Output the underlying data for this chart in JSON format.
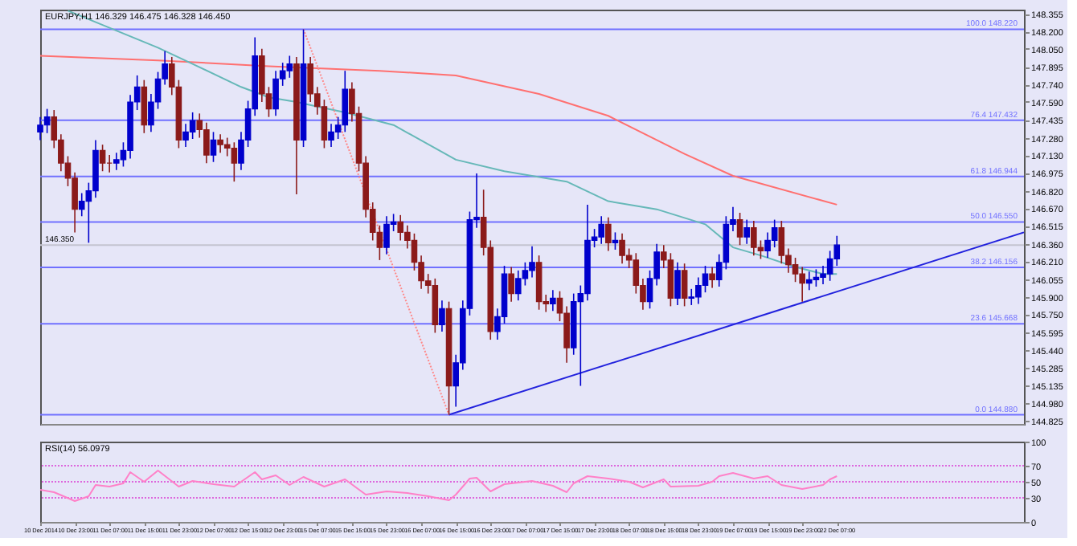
{
  "chart_data": [
    {
      "type": "candlestick",
      "title": "EURJPY,H1 146.329 146.475 146.328 146.450",
      "categories": [
        null,
        null,
        null,
        null,
        null,
        null,
        null,
        null,
        null,
        null,
        null,
        null,
        null,
        null,
        null,
        null,
        null,
        null,
        null,
        null,
        null,
        null,
        null,
        null,
        null,
        null,
        null,
        null,
        null,
        null,
        null,
        null,
        null,
        null,
        null,
        null,
        null,
        null,
        null,
        null,
        null,
        null,
        null,
        null,
        null,
        null,
        null,
        null,
        null,
        null,
        null,
        null,
        null,
        null,
        null,
        null,
        null,
        null,
        null,
        null,
        null,
        null,
        null,
        null,
        null,
        null,
        null,
        null,
        null,
        null,
        null,
        null,
        null,
        null,
        null,
        null,
        null,
        null,
        null,
        null,
        null,
        null,
        null,
        null,
        null,
        null,
        null,
        null,
        null,
        null,
        null,
        null,
        null,
        null,
        null,
        null,
        null,
        null,
        null,
        null,
        null,
        null,
        null,
        null,
        null,
        null,
        null,
        null,
        null,
        null,
        null,
        null,
        null,
        null,
        null,
        null,
        null,
        null,
        null,
        null,
        null,
        null,
        null,
        null,
        null,
        null,
        null,
        null,
        null,
        null,
        null,
        null,
        null,
        null,
        null,
        null,
        null,
        null,
        null,
        null,
        null,
        null,
        null
      ],
      "ohlc": [
        [
          147.33,
          147.46,
          147.26,
          147.39
        ],
        [
          147.39,
          147.53,
          147.32,
          147.46
        ],
        [
          147.46,
          147.52,
          147.19,
          147.26
        ],
        [
          147.26,
          147.31,
          146.99,
          147.06
        ],
        [
          147.06,
          147.12,
          146.86,
          146.93
        ],
        [
          146.93,
          146.98,
          146.46,
          146.66
        ],
        [
          146.66,
          146.8,
          146.6,
          146.73
        ],
        [
          146.73,
          146.89,
          146.37,
          146.82
        ],
        [
          146.82,
          147.26,
          146.76,
          147.17
        ],
        [
          147.17,
          147.22,
          146.99,
          147.06
        ],
        [
          147.06,
          147.13,
          146.98,
          147.06
        ],
        [
          147.06,
          147.15,
          147.0,
          147.09
        ],
        [
          147.09,
          147.24,
          147.03,
          147.17
        ],
        [
          147.17,
          147.65,
          147.1,
          147.59
        ],
        [
          147.59,
          147.82,
          147.52,
          147.72
        ],
        [
          147.72,
          147.78,
          147.32,
          147.39
        ],
        [
          147.39,
          147.66,
          147.33,
          147.59
        ],
        [
          147.59,
          147.85,
          147.53,
          147.79
        ],
        [
          147.79,
          148.03,
          147.74,
          147.92
        ],
        [
          147.92,
          147.98,
          147.65,
          147.72
        ],
        [
          147.72,
          147.78,
          147.19,
          147.26
        ],
        [
          147.26,
          147.4,
          147.2,
          147.33
        ],
        [
          147.33,
          147.5,
          147.27,
          147.43
        ],
        [
          147.43,
          147.49,
          147.28,
          147.35
        ],
        [
          147.35,
          147.41,
          147.06,
          147.13
        ],
        [
          147.13,
          147.33,
          147.07,
          147.26
        ],
        [
          147.26,
          147.31,
          147.15,
          147.22
        ],
        [
          147.22,
          147.28,
          147.12,
          147.19
        ],
        [
          147.19,
          147.24,
          146.9,
          147.06
        ],
        [
          147.06,
          147.33,
          147.0,
          147.26
        ],
        [
          147.26,
          147.6,
          147.2,
          147.53
        ],
        [
          147.53,
          148.15,
          147.47,
          147.99
        ],
        [
          147.99,
          148.05,
          147.59,
          147.66
        ],
        [
          147.66,
          147.72,
          147.46,
          147.53
        ],
        [
          147.53,
          147.86,
          147.47,
          147.79
        ],
        [
          147.79,
          147.93,
          147.73,
          147.86
        ],
        [
          147.86,
          147.99,
          147.8,
          147.92
        ],
        [
          147.92,
          147.98,
          146.79,
          147.26
        ],
        [
          147.26,
          148.22,
          147.2,
          147.92
        ],
        [
          147.92,
          147.98,
          147.59,
          147.66
        ],
        [
          147.66,
          147.72,
          147.48,
          147.55
        ],
        [
          147.55,
          147.61,
          147.19,
          147.26
        ],
        [
          147.26,
          147.4,
          147.2,
          147.33
        ],
        [
          147.33,
          147.46,
          147.27,
          147.39
        ],
        [
          147.39,
          147.86,
          147.33,
          147.7
        ],
        [
          147.7,
          147.76,
          147.42,
          147.49
        ],
        [
          147.49,
          147.55,
          146.99,
          147.06
        ],
        [
          147.06,
          147.12,
          146.59,
          146.66
        ],
        [
          146.66,
          146.72,
          146.39,
          146.46
        ],
        [
          146.46,
          146.52,
          146.22,
          146.33
        ],
        [
          146.33,
          146.6,
          146.27,
          146.53
        ],
        [
          146.53,
          146.62,
          146.47,
          146.55
        ],
        [
          146.55,
          146.61,
          146.39,
          146.46
        ],
        [
          146.46,
          146.52,
          146.32,
          146.39
        ],
        [
          146.39,
          146.45,
          146.13,
          146.2
        ],
        [
          146.2,
          146.26,
          145.97,
          146.04
        ],
        [
          146.04,
          146.1,
          145.93,
          146.0
        ],
        [
          146.0,
          146.06,
          145.59,
          145.66
        ],
        [
          145.66,
          145.87,
          145.6,
          145.8
        ],
        [
          145.8,
          145.86,
          144.88,
          145.13
        ],
        [
          145.13,
          145.4,
          144.95,
          145.33
        ],
        [
          145.33,
          145.87,
          145.27,
          145.8
        ],
        [
          145.8,
          146.64,
          145.74,
          146.57
        ],
        [
          146.57,
          146.97,
          146.5,
          146.59
        ],
        [
          146.59,
          146.83,
          146.26,
          146.33
        ],
        [
          146.33,
          146.39,
          145.53,
          145.6
        ],
        [
          145.6,
          145.8,
          145.53,
          145.73
        ],
        [
          145.73,
          146.17,
          145.67,
          146.1
        ],
        [
          146.1,
          146.16,
          145.86,
          145.93
        ],
        [
          145.93,
          146.13,
          145.87,
          146.06
        ],
        [
          146.06,
          146.2,
          146.0,
          146.13
        ],
        [
          146.13,
          146.34,
          146.07,
          146.2
        ],
        [
          146.2,
          146.26,
          145.79,
          145.86
        ],
        [
          145.86,
          145.92,
          145.77,
          145.84
        ],
        [
          145.84,
          145.96,
          145.78,
          145.89
        ],
        [
          145.89,
          145.95,
          145.69,
          145.76
        ],
        [
          145.76,
          145.82,
          145.33,
          145.46
        ],
        [
          145.46,
          145.93,
          145.4,
          145.86
        ],
        [
          145.86,
          146.0,
          145.13,
          145.93
        ],
        [
          145.93,
          146.7,
          145.87,
          146.39
        ],
        [
          146.39,
          146.49,
          146.33,
          146.42
        ],
        [
          146.42,
          146.6,
          146.36,
          146.53
        ],
        [
          146.53,
          146.59,
          146.3,
          146.37
        ],
        [
          146.37,
          146.46,
          146.31,
          146.39
        ],
        [
          146.39,
          146.45,
          146.19,
          146.26
        ],
        [
          146.26,
          146.32,
          146.15,
          146.22
        ],
        [
          146.22,
          146.28,
          145.93,
          146.0
        ],
        [
          146.0,
          146.06,
          145.79,
          145.86
        ],
        [
          145.86,
          146.13,
          145.8,
          146.06
        ],
        [
          146.06,
          146.36,
          146.0,
          146.29
        ],
        [
          146.29,
          146.35,
          146.15,
          146.22
        ],
        [
          146.22,
          146.28,
          145.82,
          145.89
        ],
        [
          145.89,
          146.2,
          145.83,
          146.13
        ],
        [
          146.13,
          146.19,
          145.82,
          145.89
        ],
        [
          145.89,
          145.97,
          145.83,
          145.9
        ],
        [
          145.9,
          146.07,
          145.84,
          146.0
        ],
        [
          146.0,
          146.17,
          145.94,
          146.1
        ],
        [
          146.1,
          146.16,
          145.98,
          146.05
        ],
        [
          146.05,
          146.27,
          145.99,
          146.2
        ],
        [
          146.2,
          146.6,
          146.14,
          146.53
        ],
        [
          146.53,
          146.68,
          146.47,
          146.57
        ],
        [
          146.57,
          146.63,
          146.35,
          146.42
        ],
        [
          146.42,
          146.57,
          146.36,
          146.5
        ],
        [
          146.5,
          146.56,
          146.26,
          146.33
        ],
        [
          146.33,
          146.39,
          146.23,
          146.3
        ],
        [
          146.3,
          146.46,
          146.24,
          146.39
        ],
        [
          146.39,
          146.57,
          146.33,
          146.5
        ],
        [
          146.5,
          146.56,
          146.19,
          146.26
        ],
        [
          146.26,
          146.32,
          146.11,
          146.18
        ],
        [
          146.18,
          146.24,
          146.03,
          146.1
        ],
        [
          146.1,
          146.16,
          145.86,
          146.02
        ],
        [
          146.02,
          146.12,
          145.96,
          146.05
        ],
        [
          146.05,
          146.14,
          145.99,
          146.07
        ],
        [
          146.07,
          146.17,
          146.01,
          146.1
        ],
        [
          146.1,
          146.3,
          146.04,
          146.23
        ],
        [
          146.23,
          146.43,
          146.17,
          146.35
        ],
        null,
        null,
        null,
        null,
        null,
        null,
        null,
        null,
        null,
        null,
        null,
        null,
        null,
        null,
        null,
        null,
        null,
        null,
        null,
        null,
        null,
        null,
        null,
        null,
        null,
        null,
        null
      ],
      "colors": [
        "#0000cc",
        "#0000cc",
        "#8b1a1a",
        "#8b1a1a",
        "#8b1a1a",
        "#8b1a1a",
        "#0000cc",
        "#0000cc",
        "#0000cc",
        "#8b1a1a",
        "#8b1a1a",
        "#0000cc",
        "#0000cc",
        "#0000cc",
        "#0000cc",
        "#8b1a1a",
        "#0000cc",
        "#0000cc",
        "#0000cc",
        "#8b1a1a",
        "#8b1a1a",
        "#0000cc",
        "#0000cc",
        "#8b1a1a",
        "#8b1a1a",
        "#0000cc",
        "#8b1a1a",
        "#8b1a1a",
        "#8b1a1a",
        "#0000cc",
        "#0000cc",
        "#0000cc",
        "#8b1a1a",
        "#8b1a1a",
        "#0000cc",
        "#0000cc",
        "#0000cc",
        "#8b1a1a",
        "#0000cc",
        "#8b1a1a",
        "#8b1a1a",
        "#8b1a1a",
        "#0000cc",
        "#0000cc",
        "#0000cc",
        "#8b1a1a",
        "#8b1a1a",
        "#8b1a1a",
        "#8b1a1a",
        "#8b1a1a",
        "#0000cc",
        "#0000cc",
        "#8b1a1a",
        "#8b1a1a",
        "#8b1a1a",
        "#8b1a1a",
        "#8b1a1a",
        "#8b1a1a",
        "#0000cc",
        "#8b1a1a",
        "#0000cc",
        "#0000cc",
        "#0000cc",
        "#0000cc",
        "#8b1a1a",
        "#8b1a1a",
        "#0000cc",
        "#0000cc",
        "#8b1a1a",
        "#0000cc",
        "#0000cc",
        "#0000cc",
        "#8b1a1a",
        "#8b1a1a",
        "#0000cc",
        "#8b1a1a",
        "#8b1a1a",
        "#0000cc",
        "#0000cc",
        "#0000cc",
        "#0000cc",
        "#0000cc",
        "#8b1a1a",
        "#0000cc",
        "#8b1a1a",
        "#8b1a1a",
        "#8b1a1a",
        "#8b1a1a",
        "#0000cc",
        "#0000cc",
        "#8b1a1a",
        "#8b1a1a",
        "#0000cc",
        "#8b1a1a",
        "#0000cc",
        "#0000cc",
        "#0000cc",
        "#8b1a1a",
        "#0000cc",
        "#0000cc",
        "#0000cc",
        "#8b1a1a",
        "#0000cc",
        "#8b1a1a",
        "#8b1a1a",
        "#0000cc",
        "#0000cc",
        "#8b1a1a",
        "#8b1a1a",
        "#8b1a1a",
        "#8b1a1a",
        "#0000cc",
        "#0000cc",
        "#0000cc",
        "#0000cc",
        "#0000cc",
        null,
        null,
        null,
        null,
        null,
        null,
        null,
        null,
        null,
        null,
        null,
        null,
        null,
        null,
        null,
        null,
        null,
        null,
        null,
        null,
        null,
        null,
        null,
        null,
        null,
        null,
        null
      ],
      "series": [
        {
          "type": "line",
          "color": "#ff7070",
          "values": [
            147.99,
            null,
            null,
            null,
            null,
            null,
            null,
            null,
            null,
            null,
            null,
            null,
            null,
            null,
            null,
            null,
            null,
            147.95,
            null,
            null,
            null,
            null,
            null,
            null,
            null,
            null,
            null,
            null,
            null,
            null,
            null,
            null,
            null,
            147.9,
            null,
            null,
            null,
            null,
            null,
            null,
            null,
            null,
            null,
            null,
            null,
            null,
            null,
            null,
            null,
            147.86,
            null,
            null,
            null,
            null,
            null,
            null,
            null,
            null,
            null,
            null,
            147.82,
            null,
            null,
            null,
            null,
            null,
            null,
            null,
            null,
            null,
            null,
            null,
            147.66,
            null,
            null,
            null,
            null,
            null,
            null,
            null,
            null,
            null,
            147.47,
            null,
            null,
            null,
            null,
            null,
            null,
            null,
            null,
            null,
            null,
            147.14,
            null,
            null,
            null,
            null,
            null,
            null,
            146.95,
            null,
            null,
            null,
            null,
            null,
            null,
            null,
            null,
            null,
            null,
            null,
            null,
            null,
            null,
            146.7,
            null,
            null,
            null,
            null,
            null,
            null,
            null,
            null,
            null,
            null,
            null,
            null,
            null,
            null,
            null,
            null,
            null,
            null,
            null,
            null,
            null,
            null,
            null,
            null,
            null,
            null,
            null
          ]
        },
        {
          "type": "line",
          "color": "#66b8b8",
          "values": [
            null,
            null,
            null,
            null,
            148.38,
            null,
            null,
            null,
            null,
            null,
            null,
            null,
            null,
            null,
            null,
            null,
            null,
            148.06,
            null,
            null,
            null,
            null,
            147.92,
            null,
            null,
            null,
            null,
            null,
            null,
            147.72,
            null,
            null,
            null,
            147.63,
            null,
            null,
            null,
            147.59,
            null,
            null,
            147.55,
            null,
            null,
            null,
            147.5,
            null,
            null,
            null,
            null,
            null,
            null,
            147.39,
            null,
            null,
            null,
            null,
            null,
            null,
            null,
            null,
            147.09,
            null,
            null,
            null,
            null,
            null,
            null,
            146.99,
            null,
            null,
            null,
            null,
            null,
            null,
            null,
            null,
            146.9,
            null,
            null,
            null,
            null,
            null,
            146.73,
            null,
            null,
            null,
            null,
            null,
            null,
            146.66,
            null,
            null,
            null,
            null,
            null,
            null,
            146.53,
            null,
            null,
            null,
            146.33,
            null,
            null,
            null,
            146.26,
            null,
            null,
            null,
            null,
            146.16,
            null,
            null,
            null,
            146.1,
            null,
            146.1,
            null,
            null,
            null,
            null,
            null,
            null,
            null,
            null,
            null,
            null,
            null,
            null,
            null,
            null,
            null,
            null,
            null,
            null,
            null,
            null,
            null,
            null,
            null,
            null,
            null,
            null,
            null
          ]
        },
        {
          "type": "line",
          "color": "#2222dd",
          "values": [
            null,
            null,
            null,
            null,
            null,
            null,
            null,
            null,
            null,
            null,
            null,
            null,
            null,
            null,
            null,
            null,
            null,
            null,
            null,
            null,
            null,
            null,
            null,
            null,
            null,
            null,
            null,
            null,
            null,
            null,
            null,
            null,
            null,
            null,
            null,
            null,
            null,
            null,
            null,
            null,
            null,
            null,
            null,
            null,
            null,
            null,
            null,
            null,
            null,
            null,
            null,
            null,
            null,
            null,
            null,
            null,
            null,
            null,
            null,
            144.88,
            null,
            null,
            null,
            null,
            null,
            null,
            null,
            null,
            null,
            null,
            null,
            null,
            null,
            null,
            null,
            null,
            null,
            null,
            null,
            null,
            null,
            null,
            null,
            null,
            null,
            null,
            null,
            null,
            null,
            null,
            null,
            null,
            null,
            null,
            null,
            null,
            null,
            null,
            null,
            null,
            null,
            null,
            null,
            null,
            null,
            null,
            null,
            null,
            null,
            null,
            null,
            null,
            null,
            null,
            null,
            null,
            null,
            null,
            null,
            null,
            null,
            null,
            null,
            null,
            null,
            null,
            null,
            null,
            null,
            null,
            null,
            null,
            null,
            null,
            null,
            null,
            null,
            null,
            null,
            null,
            null,
            null,
            146.46
          ]
        },
        {
          "type": "line",
          "color": "#ff8888",
          "line_style": "dotted",
          "values": [
            null,
            null,
            null,
            null,
            null,
            null,
            null,
            null,
            null,
            null,
            null,
            null,
            null,
            null,
            null,
            null,
            null,
            null,
            null,
            null,
            null,
            null,
            null,
            null,
            null,
            null,
            null,
            null,
            null,
            null,
            null,
            null,
            null,
            null,
            null,
            null,
            null,
            null,
            148.22,
            null,
            null,
            null,
            null,
            null,
            null,
            null,
            null,
            null,
            null,
            null,
            null,
            null,
            null,
            null,
            null,
            null,
            null,
            null,
            null,
            144.88,
            null,
            null,
            null,
            null,
            null,
            null,
            null,
            null,
            null,
            null,
            null,
            null,
            null,
            null,
            null,
            null,
            null,
            null,
            null,
            null,
            null,
            null,
            null,
            null,
            null,
            null,
            null,
            null,
            null,
            null,
            null,
            null,
            null,
            null,
            null,
            null,
            null,
            null,
            null,
            null,
            null,
            null,
            null,
            null,
            null,
            null,
            null,
            null,
            null,
            null,
            null,
            null,
            null,
            null,
            null,
            null,
            null,
            null,
            null,
            null,
            null,
            null,
            null,
            null,
            null,
            null,
            null,
            null,
            null,
            null,
            null,
            null,
            null,
            null,
            null,
            null,
            null,
            null,
            null,
            null,
            null,
            null,
            null
          ]
        }
      ],
      "ref_lines": [
        {
          "axis": "y",
          "value": 148.22,
          "label": "100.0 148.220",
          "color": "#7070ff"
        },
        {
          "axis": "y",
          "value": 147.432,
          "label": "76.4 147.432",
          "color": "#7070ff"
        },
        {
          "axis": "y",
          "value": 146.944,
          "label": "61.8 146.944",
          "color": "#7070ff"
        },
        {
          "axis": "y",
          "value": 146.55,
          "label": "50.0 146.550",
          "color": "#7070ff"
        },
        {
          "axis": "y",
          "value": 146.156,
          "label": "38.2 146.156",
          "color": "#7070ff"
        },
        {
          "axis": "y",
          "value": 145.668,
          "label": "23.6 145.668",
          "color": "#7070ff"
        },
        {
          "axis": "y",
          "value": 144.88,
          "label": "0.0 144.880",
          "color": "#7070ff"
        },
        {
          "axis": "y",
          "value": 146.35,
          "label": "146.350",
          "color": "#c4c4d0"
        }
      ],
      "ylim": [
        144.8,
        148.39
      ],
      "yticks": [
        148.355,
        {
          "value": 148.2,
          "label": "148.200"
        },
        {
          "value": 148.05,
          "label": "148.050"
        },
        147.895,
        {
          "value": 147.74,
          "label": "147.740"
        },
        {
          "value": 147.59,
          "label": "147.590"
        },
        147.435,
        {
          "value": 147.28,
          "label": "147.280"
        },
        {
          "value": 147.13,
          "label": "147.130"
        },
        146.975,
        {
          "value": 146.82,
          "label": "146.820"
        },
        {
          "value": 146.67,
          "label": "146.670"
        },
        146.515,
        {
          "value": 146.36,
          "label": "146.360"
        },
        {
          "value": 146.21,
          "label": "146.210"
        },
        146.055,
        {
          "value": 145.9,
          "label": "145.900"
        },
        {
          "value": 145.75,
          "label": "145.750"
        },
        145.595,
        {
          "value": 145.44,
          "label": "145.440"
        },
        145.285,
        145.135,
        {
          "value": 144.98,
          "label": "144.980"
        },
        144.825
      ],
      "tick_labels": "y",
      "grid": false
    },
    {
      "type": "line",
      "title": "RSI(14) 56.0979",
      "categories": [
        "10 Dec 2014",
        null,
        null,
        null,
        null,
        "10 Dec 23:00",
        null,
        null,
        null,
        null,
        "11 Dec 07:00",
        null,
        null,
        null,
        null,
        "11 Dec 15:00",
        null,
        null,
        null,
        null,
        "11 Dec 23:00",
        null,
        null,
        null,
        null,
        "12 Dec 07:00",
        null,
        null,
        null,
        null,
        "12 Dec 15:00",
        null,
        null,
        null,
        null,
        "12 Dec 23:00",
        null,
        null,
        null,
        null,
        "15 Dec 07:00",
        null,
        null,
        null,
        null,
        "15 Dec 15:00",
        null,
        null,
        null,
        null,
        "15 Dec 23:00",
        null,
        null,
        null,
        null,
        "16 Dec 07:00",
        null,
        null,
        null,
        null,
        "16 Dec 15:00",
        null,
        null,
        null,
        null,
        "16 Dec 23:00",
        null,
        null,
        null,
        null,
        "17 Dec 07:00",
        null,
        null,
        null,
        null,
        "17 Dec 15:00",
        null,
        null,
        null,
        null,
        "17 Dec 23:00",
        null,
        null,
        null,
        null,
        "18 Dec 07:00",
        null,
        null,
        null,
        null,
        "18 Dec 15:00",
        null,
        null,
        null,
        null,
        "18 Dec 23:00",
        null,
        null,
        null,
        null,
        "19 Dec 07:00",
        null,
        null,
        null,
        null,
        "19 Dec 15:00",
        null,
        null,
        null,
        null,
        "19 Dec 23:00",
        null,
        null,
        null,
        null,
        "22 Dec 07:00",
        null,
        null,
        null,
        null,
        null,
        null,
        null,
        null,
        null,
        null,
        null,
        null,
        null,
        null,
        null,
        null,
        null,
        null,
        null,
        null,
        null,
        null,
        null,
        null,
        null,
        null,
        null
      ],
      "series": [
        {
          "color": "#ff80c8",
          "values": [
            40,
            null,
            37,
            null,
            null,
            26,
            null,
            32,
            46,
            null,
            44,
            null,
            48,
            62,
            null,
            50,
            null,
            64,
            null,
            null,
            44,
            null,
            51,
            null,
            null,
            47,
            null,
            null,
            44,
            null,
            null,
            62,
            53,
            null,
            58,
            null,
            46,
            null,
            56,
            null,
            null,
            44,
            null,
            null,
            53,
            null,
            null,
            34,
            null,
            null,
            38,
            null,
            null,
            36,
            null,
            null,
            32,
            null,
            null,
            27,
            34,
            null,
            54,
            55,
            null,
            38,
            null,
            47,
            null,
            null,
            null,
            51,
            null,
            null,
            45,
            null,
            37,
            48,
            null,
            57,
            null,
            null,
            54,
            null,
            null,
            50,
            null,
            43,
            null,
            null,
            53,
            44,
            null,
            null,
            null,
            45,
            null,
            50,
            57,
            null,
            61,
            null,
            null,
            54,
            null,
            57,
            null,
            46,
            null,
            null,
            41,
            null,
            null,
            46,
            53,
            57,
            null,
            null,
            null,
            null,
            null,
            null,
            null,
            null,
            null,
            null,
            null,
            null,
            null,
            null,
            null,
            null,
            null,
            null,
            null,
            null,
            null,
            null,
            null,
            null,
            null,
            null,
            null
          ]
        }
      ],
      "ref_lines": [
        {
          "axis": "y",
          "value": 70,
          "color": "#dd66dd",
          "line_style": "dotted"
        },
        {
          "axis": "y",
          "value": 50,
          "color": "#dd66dd",
          "line_style": "dotted"
        },
        {
          "axis": "y",
          "value": 30,
          "color": "#dd66dd",
          "line_style": "dotted"
        }
      ],
      "ylim": [
        0,
        100
      ],
      "yticks": [
        0,
        30,
        50,
        70,
        100
      ],
      "grid": false
    }
  ]
}
